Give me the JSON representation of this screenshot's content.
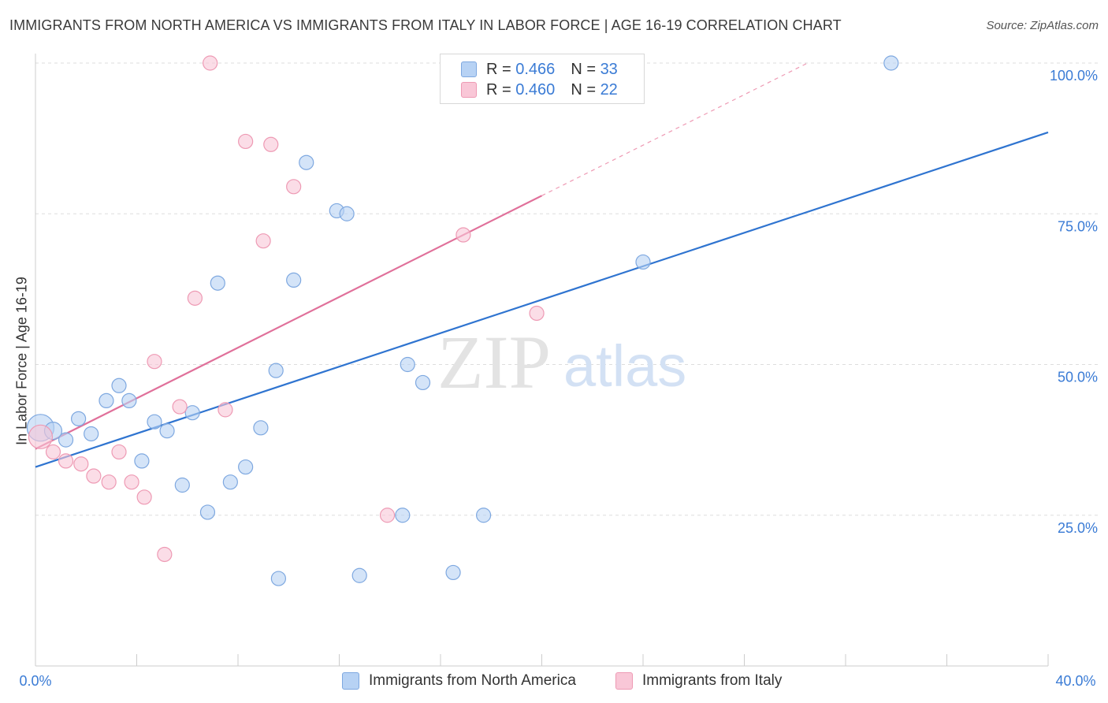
{
  "title": "IMMIGRANTS FROM NORTH AMERICA VS IMMIGRANTS FROM ITALY IN LABOR FORCE | AGE 16-19 CORRELATION CHART",
  "source": "Source: ZipAtlas.com",
  "watermark": {
    "zip": "ZIP",
    "atlas": "atlas"
  },
  "legend": {
    "r_label": "R =",
    "n_label": "N =",
    "rows": [
      {
        "r": "0.466",
        "n": "33"
      },
      {
        "r": "0.460",
        "n": "22"
      }
    ]
  },
  "colors": {
    "north_america_fill": "#b7d2f4",
    "north_america_stroke": "#7ea8e0",
    "north_america_line": "#2f74d0",
    "italy_fill": "#f9c7d7",
    "italy_stroke": "#ee9ab4",
    "italy_line": "#e0709a",
    "axis_text": "#3a7bd5",
    "grid": "#dddddd"
  },
  "chart_data": {
    "type": "scatter",
    "title": "IMMIGRANTS FROM NORTH AMERICA VS IMMIGRANTS FROM ITALY IN LABOR FORCE | AGE 16-19 CORRELATION CHART",
    "xlabel": "",
    "ylabel": "In Labor Force | Age 16-19",
    "xlim": [
      0,
      40
    ],
    "ylim": [
      0,
      100
    ],
    "x_tick_labels": [
      "0.0%",
      "40.0%"
    ],
    "y_tick_labels": [
      "100.0%",
      "75.0%",
      "50.0%",
      "25.0%"
    ],
    "y_ticks": [
      100,
      75,
      50,
      25
    ],
    "grid": true,
    "legend_position": "bottom",
    "series": [
      {
        "name": "Immigrants from North America",
        "r": 0.466,
        "n": 33,
        "points": [
          [
            0.2,
            39.5
          ],
          [
            0.7,
            39.0
          ],
          [
            1.2,
            37.5
          ],
          [
            1.7,
            41.0
          ],
          [
            2.2,
            38.5
          ],
          [
            2.8,
            44.0
          ],
          [
            3.3,
            46.5
          ],
          [
            3.7,
            44.0
          ],
          [
            4.2,
            34.0
          ],
          [
            4.7,
            40.5
          ],
          [
            5.2,
            39.0
          ],
          [
            5.8,
            30.0
          ],
          [
            6.2,
            42.0
          ],
          [
            6.8,
            25.5
          ],
          [
            7.2,
            63.5
          ],
          [
            7.7,
            30.5
          ],
          [
            8.3,
            33.0
          ],
          [
            8.9,
            39.5
          ],
          [
            9.5,
            49.0
          ],
          [
            9.6,
            14.5
          ],
          [
            10.2,
            64.0
          ],
          [
            10.7,
            83.5
          ],
          [
            11.9,
            75.5
          ],
          [
            12.3,
            75.0
          ],
          [
            12.8,
            15.0
          ],
          [
            14.5,
            25.0
          ],
          [
            14.7,
            50.0
          ],
          [
            15.3,
            47.0
          ],
          [
            16.5,
            15.5
          ],
          [
            17.7,
            25.0
          ],
          [
            20.7,
            100.0
          ],
          [
            24.0,
            67.0
          ],
          [
            33.8,
            100.0
          ]
        ],
        "sizes": [
          34,
          22,
          18,
          18,
          18,
          18,
          18,
          18,
          18,
          18,
          18,
          18,
          18,
          18,
          18,
          18,
          18,
          18,
          18,
          18,
          18,
          18,
          18,
          18,
          18,
          18,
          18,
          18,
          18,
          18,
          18,
          18,
          18
        ],
        "trend": {
          "x": [
            0,
            40
          ],
          "y": [
            33.0,
            88.5
          ],
          "dashed_from": null
        }
      },
      {
        "name": "Immigrants from Italy",
        "r": 0.46,
        "n": 22,
        "points": [
          [
            0.2,
            38.0
          ],
          [
            0.7,
            35.5
          ],
          [
            1.2,
            34.0
          ],
          [
            1.8,
            33.5
          ],
          [
            2.3,
            31.5
          ],
          [
            2.9,
            30.5
          ],
          [
            3.3,
            35.5
          ],
          [
            3.8,
            30.5
          ],
          [
            4.3,
            28.0
          ],
          [
            4.7,
            50.5
          ],
          [
            5.1,
            18.5
          ],
          [
            5.7,
            43.0
          ],
          [
            6.3,
            61.0
          ],
          [
            6.9,
            100.0
          ],
          [
            7.5,
            42.5
          ],
          [
            8.3,
            87.0
          ],
          [
            9.0,
            70.5
          ],
          [
            9.3,
            86.5
          ],
          [
            10.2,
            79.5
          ],
          [
            13.9,
            25.0
          ],
          [
            16.9,
            71.5
          ],
          [
            19.8,
            58.5
          ]
        ],
        "sizes": [
          30,
          18,
          18,
          18,
          18,
          18,
          18,
          18,
          18,
          18,
          18,
          18,
          18,
          18,
          18,
          18,
          18,
          18,
          18,
          18,
          18,
          18
        ],
        "trend": {
          "x": [
            0,
            20
          ],
          "y": [
            36.0,
            78.0
          ],
          "dashed_to": {
            "x": 30.5,
            "y": 100.0
          }
        }
      }
    ]
  }
}
